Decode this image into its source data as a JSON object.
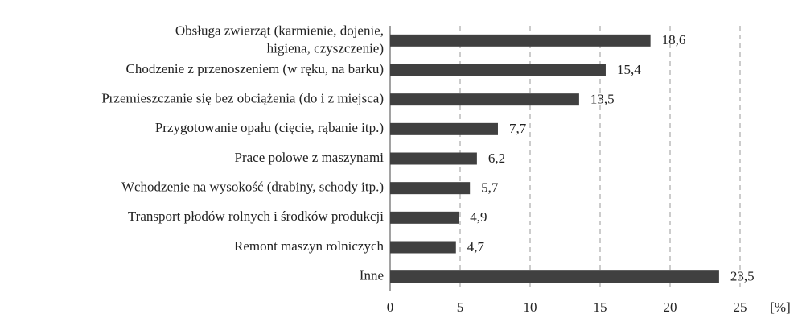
{
  "chart_data": {
    "type": "barh",
    "categories": [
      "Obsługa zwierząt (karmienie, dojenie,\nhigiena, czyszczenie)",
      "Chodzenie z przenoszeniem (w ręku, na barku)",
      "Przemieszczanie się bez obciążenia (do i z miejsca)",
      "Przygotowanie opału (cięcie, rąbanie itp.)",
      "Prace polowe z maszynami",
      "Wchodzenie na wysokość (drabiny, schody itp.)",
      "Transport płodów rolnych i środków produkcji",
      "Remont maszyn rolniczych",
      "Inne"
    ],
    "values": [
      18.6,
      15.4,
      13.5,
      7.7,
      6.2,
      5.7,
      4.9,
      4.7,
      23.5
    ],
    "value_labels": [
      "18,6",
      "15,4",
      "13,5",
      "7,7",
      "6,2",
      "5,7",
      "4,9",
      "4,7",
      "23,5"
    ],
    "color": "#404040",
    "xlim": [
      0,
      25
    ],
    "xticks": [
      0,
      5,
      10,
      15,
      20,
      25
    ],
    "x_label": "[%]",
    "grid": true
  }
}
